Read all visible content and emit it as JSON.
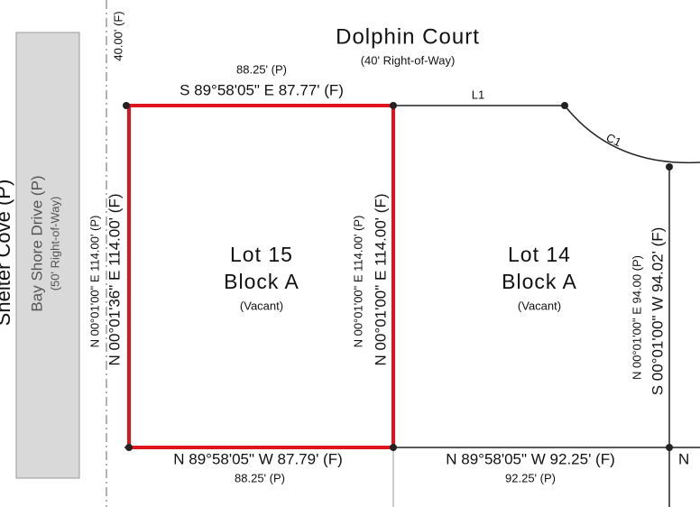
{
  "street": {
    "name": "Dolphin Court",
    "row": "(40' Right-of-Way)"
  },
  "side_street": {
    "name": "Bay Shore Drive (P)",
    "row": "(50' Right-of-Way)"
  },
  "waterway": "Shelter Cove (P)",
  "top_offset": "40.00' (F)",
  "lines": {
    "l1": "L1",
    "c1": "C1"
  },
  "lot15": {
    "lot": "Lot 15",
    "block": "Block A",
    "status": "(Vacant)",
    "north_plat": "88.25' (P)",
    "north_field": "S 89°58'05\" E  87.77' (F)",
    "west_plat": "N 00°01'00\" E  114.00' (P)",
    "west_field": "N 00°01'36\" E  114.00' (F)",
    "east_plat": "N 00°01'00\" E  114.00' (P)",
    "east_field": "N 00°01'00\" E  114.00' (F)",
    "south_field": "N 89°58'05\" W   87.79' (F)",
    "south_plat": "88.25' (P)"
  },
  "lot14": {
    "lot": "Lot 14",
    "block": "Block A",
    "status": "(Vacant)",
    "east_plat": "N 00°01'00\" E  94.00 (P)",
    "east_field": "S 00°01'00\" W  94.02' (F)",
    "south_field": "N 89°58'05\" W   92.25' (F)",
    "south_plat": "92.25' (P)"
  },
  "next_bearing": "N"
}
